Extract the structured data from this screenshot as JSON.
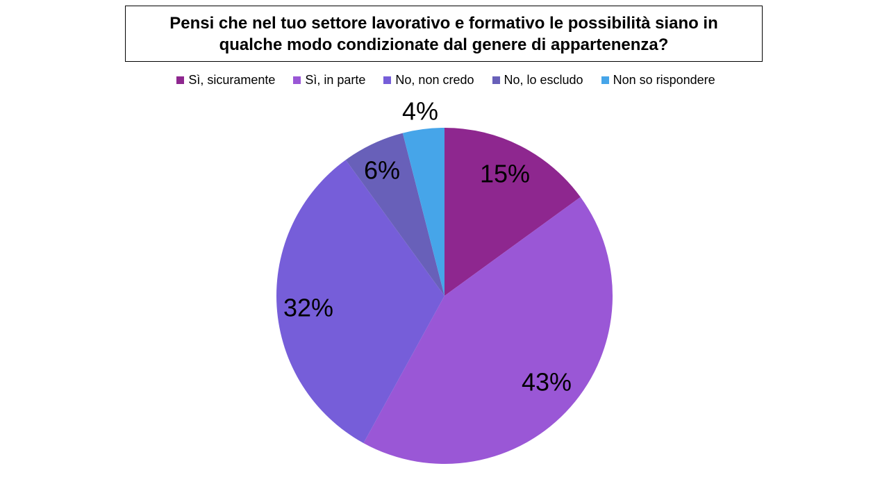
{
  "chart_data": {
    "type": "pie",
    "title": "Pensi che nel tuo settore lavorativo e formativo le possibilità siano in qualche modo condizionate dal genere di appartenenza?",
    "title_line1": "Pensi che nel tuo settore lavorativo e formativo le possibilità siano in",
    "title_line2": "qualche modo condizionate dal genere di appartenenza?",
    "legend_position": "top",
    "slices": [
      {
        "label": "Sì, sicuramente",
        "value": 15,
        "data_label": "15%",
        "color": "#8e278f"
      },
      {
        "label": "Sì, in parte",
        "value": 43,
        "data_label": "43%",
        "color": "#9a57d6"
      },
      {
        "label": "No, non credo",
        "value": 32,
        "data_label": "32%",
        "color": "#765ed9"
      },
      {
        "label": "No, lo escludo",
        "value": 6,
        "data_label": "6%",
        "color": "#6860b9"
      },
      {
        "label": "Non so rispondere",
        "value": 4,
        "data_label": "4%",
        "color": "#46a5e9"
      }
    ]
  }
}
